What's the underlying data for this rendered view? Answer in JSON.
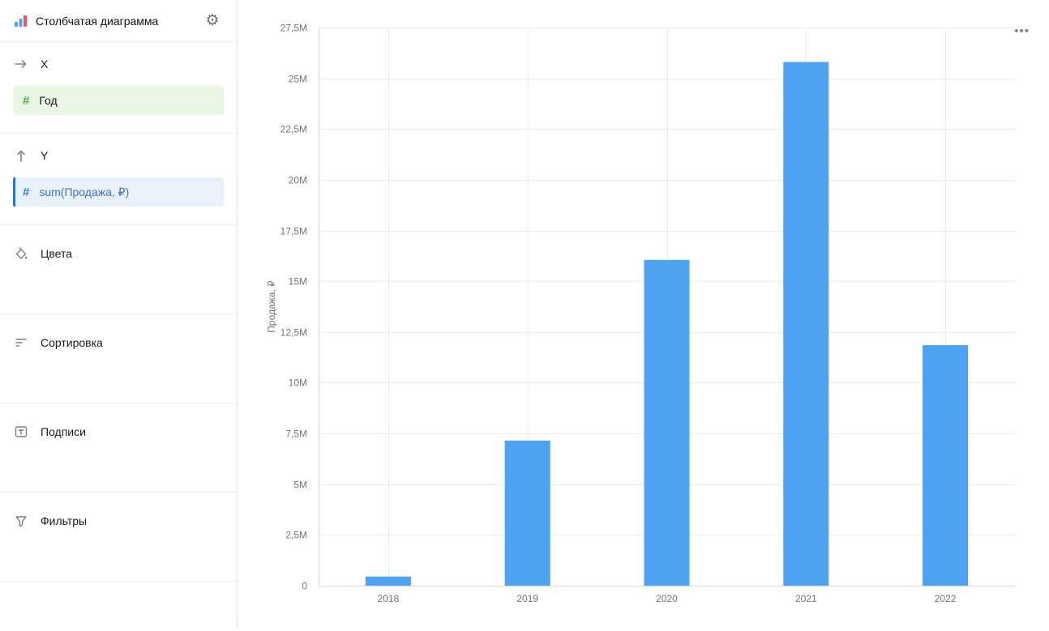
{
  "sidebar": {
    "title": "Столбчатая диаграмма",
    "sections": {
      "x": {
        "label": "X",
        "field": "Год"
      },
      "y": {
        "label": "Y",
        "field": "sum(Продажа, ₽)"
      },
      "colors": {
        "label": "Цвета"
      },
      "sorting": {
        "label": "Сортировка"
      },
      "labels": {
        "label": "Подписи"
      },
      "filters": {
        "label": "Фильтры"
      }
    },
    "field_type_icon": "#"
  },
  "chart": {
    "menu_icon": "•••"
  },
  "chart_data": {
    "type": "bar",
    "categories": [
      "2018",
      "2019",
      "2020",
      "2021",
      "2022"
    ],
    "values": [
      450000,
      7150000,
      16050000,
      25800000,
      11850000
    ],
    "title": "",
    "xlabel": "",
    "ylabel": "Продажа, ₽",
    "ylim": [
      0,
      27500000
    ],
    "ytick_step": 2500000,
    "ytick_labels": [
      "0",
      "2,5M",
      "5M",
      "7,5M",
      "10M",
      "12,5M",
      "15M",
      "17,5M",
      "20M",
      "22,5M",
      "25M",
      "27,5M"
    ],
    "bar_color": "#4DA2F2",
    "grid": true,
    "legend": "none"
  },
  "colors": {
    "bar": "#4DA2F2",
    "grid": "#ececec",
    "axis": "#d9d9d9",
    "tick_text": "#757575",
    "logo_blue": "#4DA2F2",
    "logo_red": "#FF4A6E"
  }
}
